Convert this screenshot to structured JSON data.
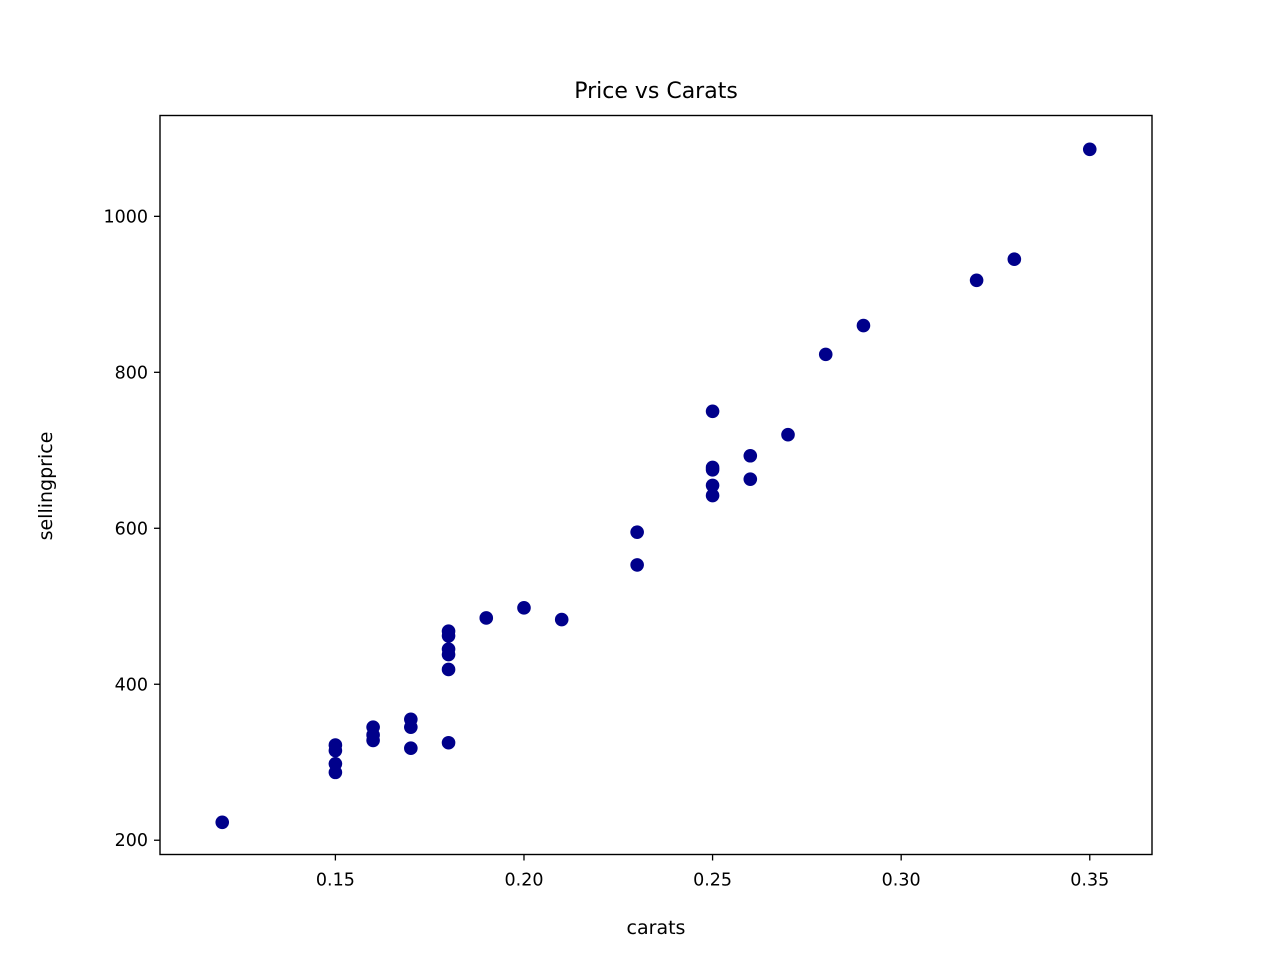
{
  "chart_data": {
    "type": "scatter",
    "title": "Price vs Carats",
    "xlabel": "carats",
    "ylabel": "sellingprice",
    "xlim": [
      0.1035,
      0.3665
    ],
    "ylim": [
      181.7,
      1129.3
    ],
    "xticks": [
      0.15,
      0.2,
      0.25,
      0.3,
      0.35
    ],
    "xtick_labels": [
      "0.15",
      "0.20",
      "0.25",
      "0.30",
      "0.35"
    ],
    "yticks": [
      200,
      400,
      600,
      800,
      1000
    ],
    "ytick_labels": [
      "200",
      "400",
      "600",
      "800",
      "1000"
    ],
    "grid": false,
    "legend": false,
    "marker_color": "#00008b",
    "points": [
      {
        "x": 0.12,
        "y": 223
      },
      {
        "x": 0.15,
        "y": 322
      },
      {
        "x": 0.15,
        "y": 315
      },
      {
        "x": 0.15,
        "y": 298
      },
      {
        "x": 0.15,
        "y": 287
      },
      {
        "x": 0.16,
        "y": 345
      },
      {
        "x": 0.16,
        "y": 335
      },
      {
        "x": 0.16,
        "y": 328
      },
      {
        "x": 0.17,
        "y": 355
      },
      {
        "x": 0.17,
        "y": 345
      },
      {
        "x": 0.17,
        "y": 318
      },
      {
        "x": 0.18,
        "y": 468
      },
      {
        "x": 0.18,
        "y": 462
      },
      {
        "x": 0.18,
        "y": 445
      },
      {
        "x": 0.18,
        "y": 438
      },
      {
        "x": 0.18,
        "y": 419
      },
      {
        "x": 0.18,
        "y": 325
      },
      {
        "x": 0.19,
        "y": 485
      },
      {
        "x": 0.2,
        "y": 498
      },
      {
        "x": 0.21,
        "y": 483
      },
      {
        "x": 0.23,
        "y": 595
      },
      {
        "x": 0.23,
        "y": 553
      },
      {
        "x": 0.25,
        "y": 750
      },
      {
        "x": 0.25,
        "y": 678
      },
      {
        "x": 0.25,
        "y": 675
      },
      {
        "x": 0.25,
        "y": 655
      },
      {
        "x": 0.25,
        "y": 642
      },
      {
        "x": 0.26,
        "y": 693
      },
      {
        "x": 0.26,
        "y": 663
      },
      {
        "x": 0.27,
        "y": 720
      },
      {
        "x": 0.28,
        "y": 823
      },
      {
        "x": 0.29,
        "y": 860
      },
      {
        "x": 0.32,
        "y": 918
      },
      {
        "x": 0.33,
        "y": 945
      },
      {
        "x": 0.35,
        "y": 1086
      }
    ]
  }
}
